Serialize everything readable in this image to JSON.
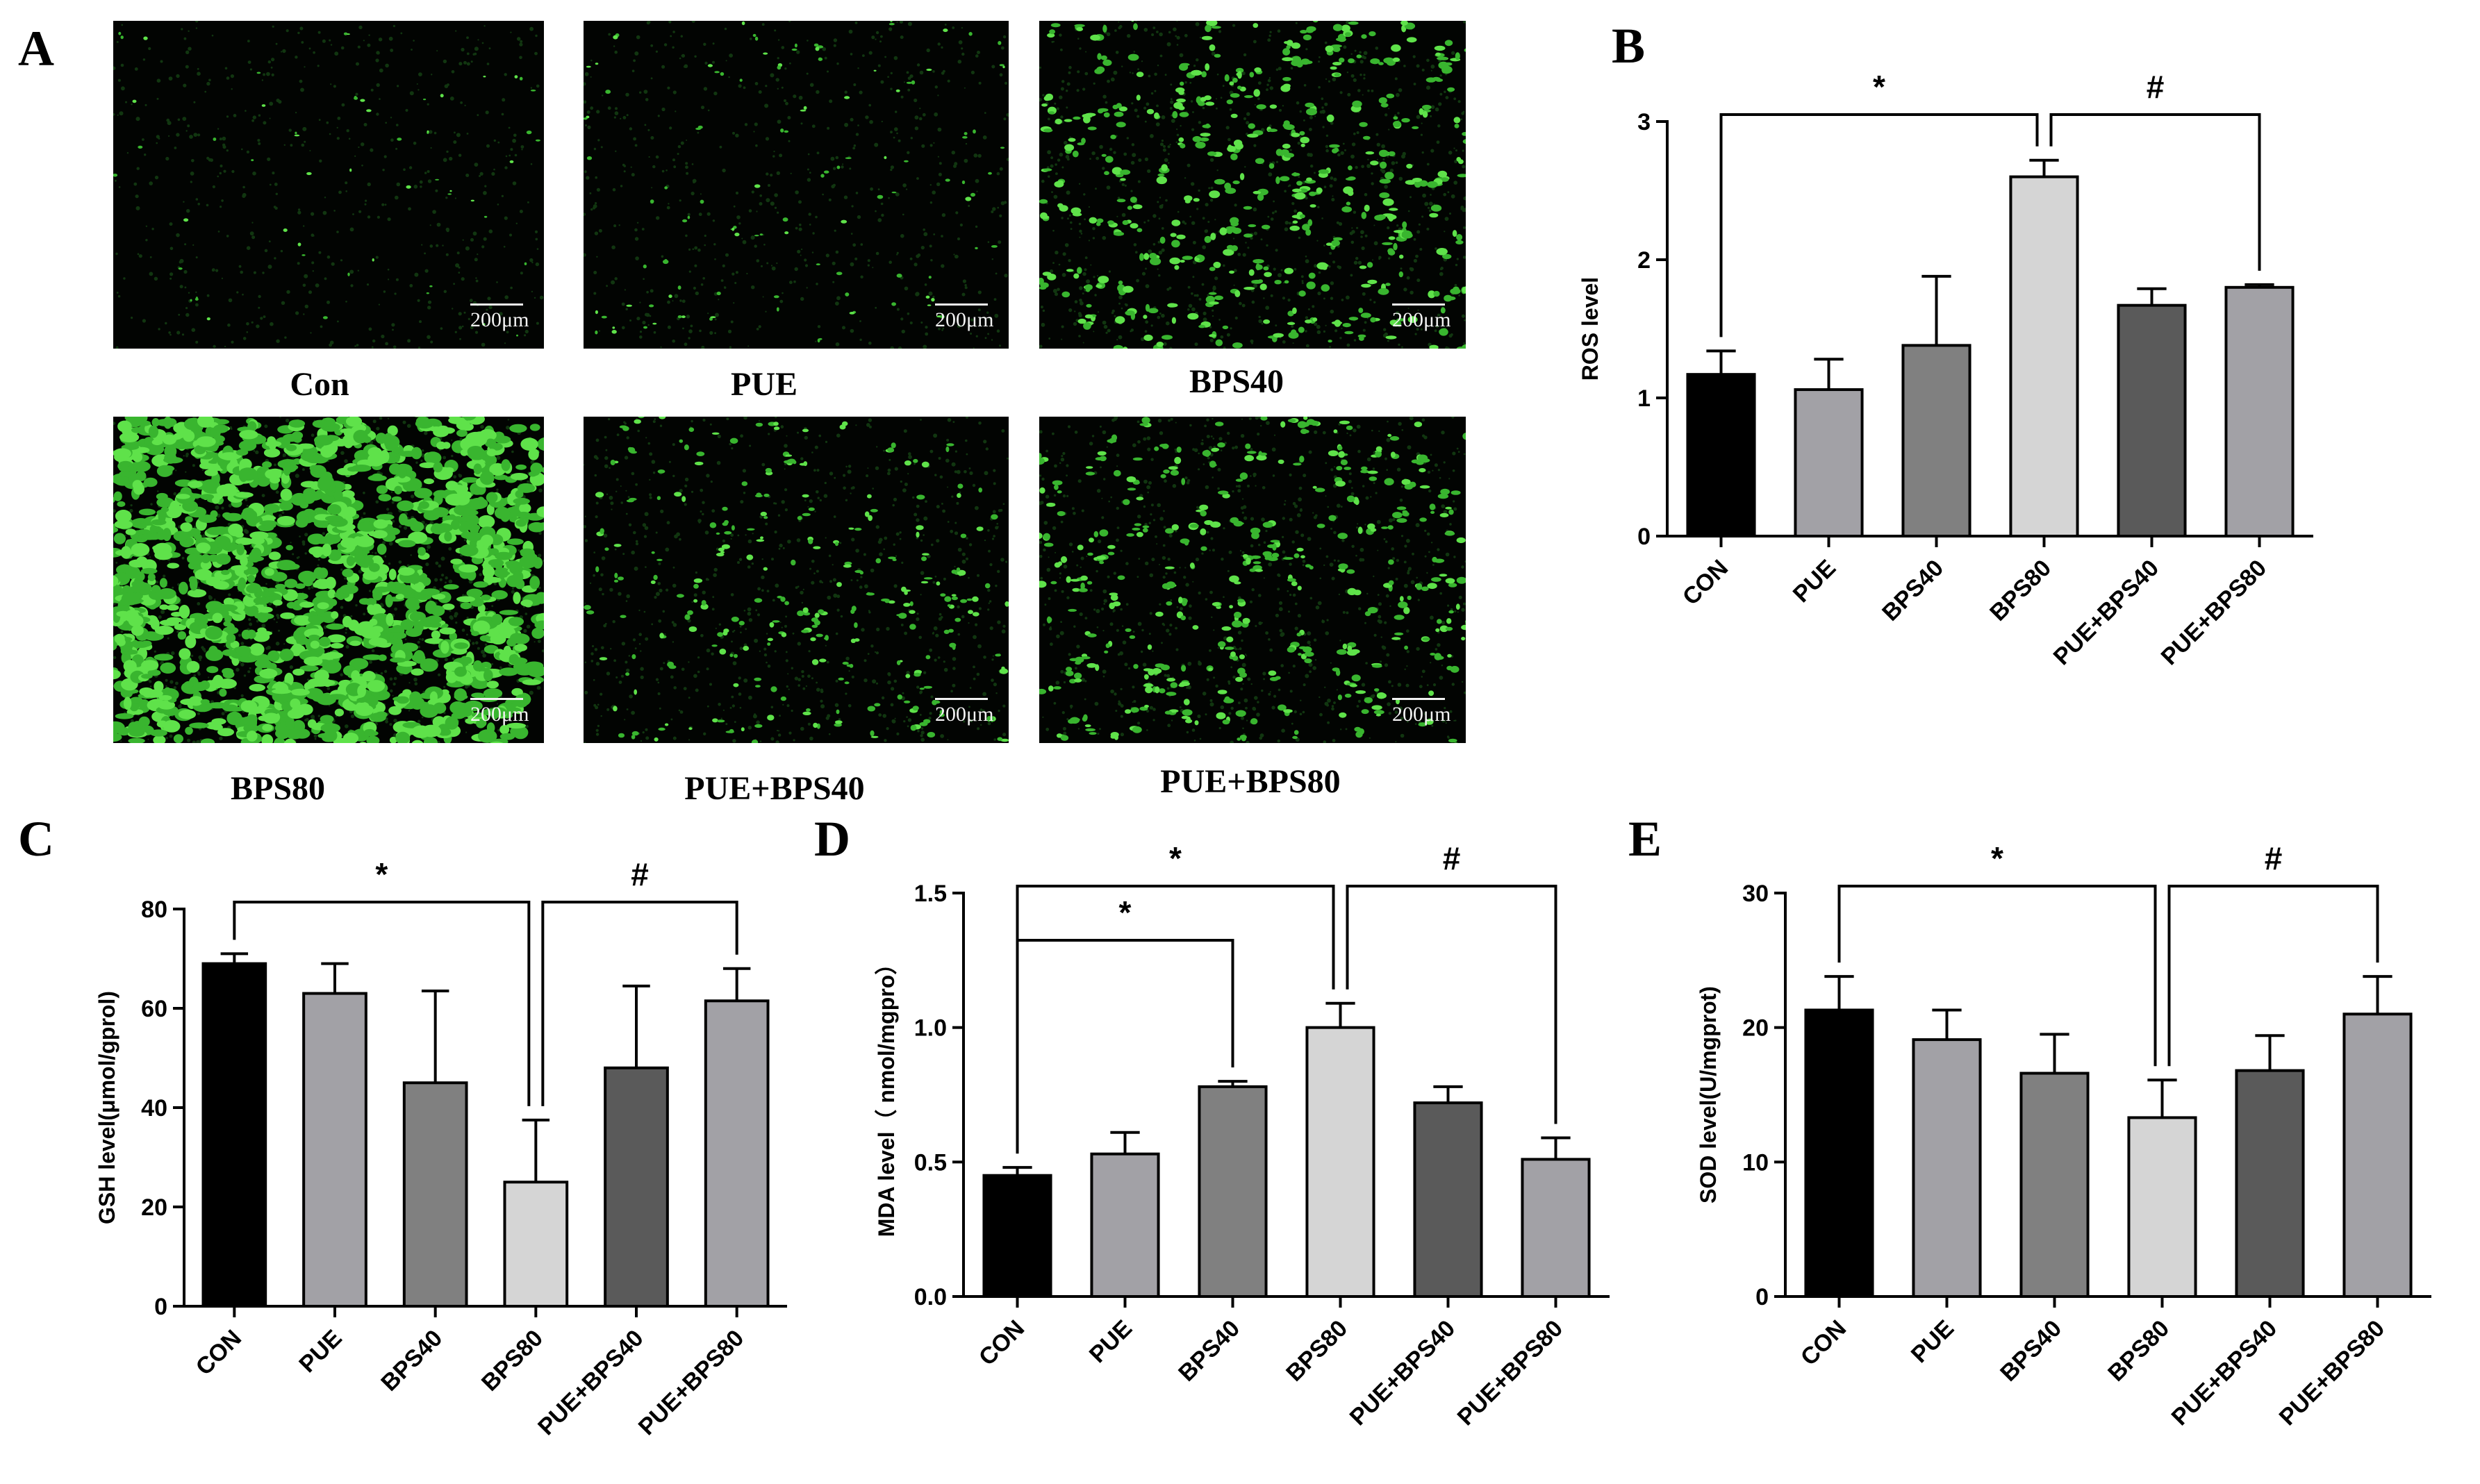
{
  "panels": {
    "a": "A",
    "b": "B",
    "c": "C",
    "d": "D",
    "e": "E"
  },
  "micrographs": [
    {
      "label": "Con",
      "scale": "200μm",
      "intensity": 0.06
    },
    {
      "label": "PUE",
      "scale": "200μm",
      "intensity": 0.12
    },
    {
      "label": "BPS40",
      "scale": "200μm",
      "intensity": 0.45
    },
    {
      "label": "BPS80",
      "scale": "200μm",
      "intensity": 1.0
    },
    {
      "label": "PUE+BPS40",
      "scale": "200μm",
      "intensity": 0.28
    },
    {
      "label": "PUE+BPS80",
      "scale": "200μm",
      "intensity": 0.4
    }
  ],
  "bar_colors": [
    "#000000",
    "#a2a1a6",
    "#808080",
    "#d5d5d5",
    "#5a5a5a",
    "#a2a1a6"
  ],
  "chart_data": [
    {
      "panel": "B",
      "type": "bar",
      "categories": [
        "CON",
        "PUE",
        "BPS40",
        "BPS80",
        "PUE+BPS40",
        "PUE+BPS80"
      ],
      "values": [
        1.17,
        1.06,
        1.38,
        2.6,
        1.67,
        1.8
      ],
      "errors": [
        0.17,
        0.22,
        0.5,
        0.12,
        0.12,
        0.02
      ],
      "ylabel": "ROS level",
      "ylim": [
        0,
        3
      ],
      "yticks": [
        "0",
        "1",
        "2",
        "3"
      ],
      "significance": [
        {
          "symbol": "*",
          "from": 0,
          "to": 3
        },
        {
          "symbol": "#",
          "from": 3,
          "to": 5
        }
      ]
    },
    {
      "panel": "C",
      "type": "bar",
      "categories": [
        "CON",
        "PUE",
        "BPS40",
        "BPS80",
        "PUE+BPS40",
        "PUE+BPS80"
      ],
      "values": [
        69,
        63,
        45,
        25,
        48,
        61.5
      ],
      "errors": [
        2,
        6,
        18.5,
        12.5,
        16.5,
        6.5
      ],
      "ylabel": "GSH level(μmol/gprol)",
      "ylim": [
        0,
        80
      ],
      "yticks": [
        "0",
        "20",
        "40",
        "60",
        "80"
      ],
      "significance": [
        {
          "symbol": "*",
          "from": 0,
          "to": 3
        },
        {
          "symbol": "#",
          "from": 3,
          "to": 5
        }
      ]
    },
    {
      "panel": "D",
      "type": "bar",
      "categories": [
        "CON",
        "PUE",
        "BPS40",
        "BPS80",
        "PUE+BPS40",
        "PUE+BPS80"
      ],
      "values": [
        0.45,
        0.53,
        0.78,
        1.0,
        0.72,
        0.51
      ],
      "errors": [
        0.03,
        0.08,
        0.02,
        0.09,
        0.06,
        0.08
      ],
      "ylabel": "MDA level（ nmol/mgpro）",
      "ylim": [
        0,
        1.5
      ],
      "yticks": [
        "0.0",
        "0.5",
        "1.0",
        "1.5"
      ],
      "significance": [
        {
          "symbol": "*",
          "from": 0,
          "to": 2
        },
        {
          "symbol": "*",
          "from": 0,
          "to": 3
        },
        {
          "symbol": "#",
          "from": 3,
          "to": 5
        }
      ]
    },
    {
      "panel": "E",
      "type": "bar",
      "categories": [
        "CON",
        "PUE",
        "BPS40",
        "BPS80",
        "PUE+BPS40",
        "PUE+BPS80"
      ],
      "values": [
        21.3,
        19.1,
        16.6,
        13.3,
        16.8,
        21
      ],
      "errors": [
        2.5,
        2.2,
        2.9,
        2.8,
        2.6,
        2.8
      ],
      "ylabel": "SOD level(U/mgprot)",
      "ylim": [
        0,
        30
      ],
      "yticks": [
        "0",
        "10",
        "20",
        "30"
      ],
      "significance": [
        {
          "symbol": "*",
          "from": 0,
          "to": 3
        },
        {
          "symbol": "#",
          "from": 3,
          "to": 5
        }
      ]
    }
  ]
}
